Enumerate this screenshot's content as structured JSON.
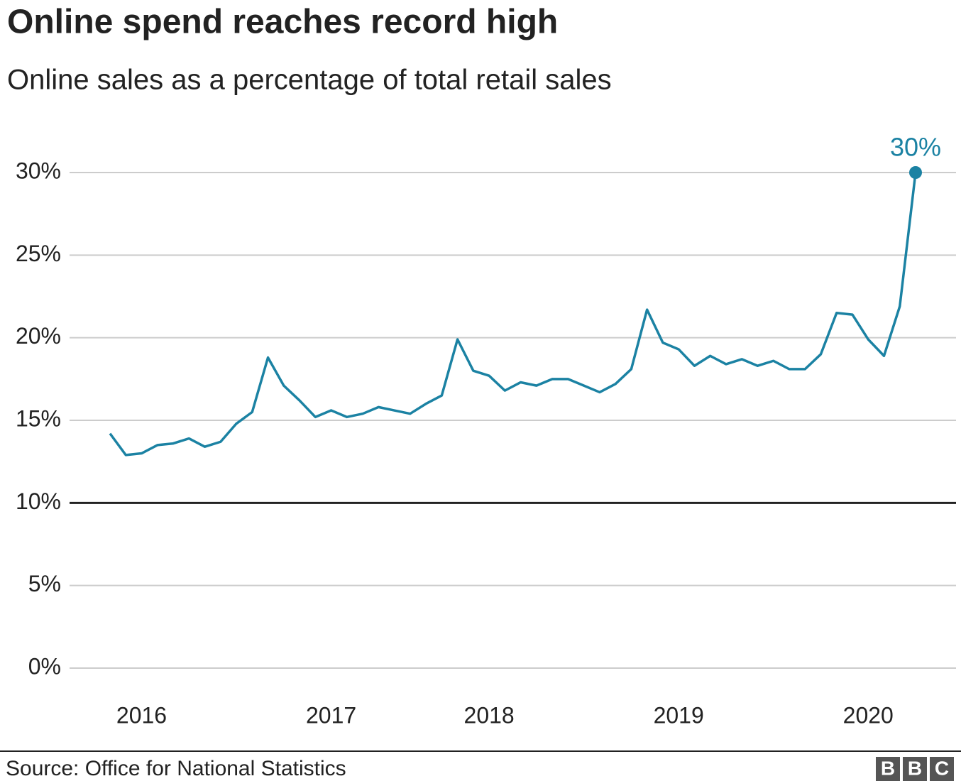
{
  "chart_data": {
    "type": "line",
    "title": "Online spend reaches record high",
    "subtitle": "Online sales as a percentage of total retail sales",
    "source": "Source: Office for National Statistics",
    "logo": [
      "B",
      "B",
      "C"
    ],
    "categories": [
      null,
      null,
      "2016",
      null,
      null,
      null,
      null,
      null,
      null,
      null,
      null,
      null,
      null,
      null,
      "2017",
      null,
      null,
      null,
      null,
      null,
      null,
      null,
      null,
      null,
      "2018",
      null,
      null,
      null,
      null,
      null,
      null,
      null,
      null,
      null,
      null,
      null,
      "2019",
      null,
      null,
      null,
      null,
      null,
      null,
      null,
      null,
      null,
      null,
      null,
      "2020",
      null,
      null,
      null
    ],
    "series": [
      {
        "name": "Online sales",
        "color": "#1b82a3",
        "values": [
          14.2,
          12.9,
          13.0,
          13.5,
          13.6,
          13.9,
          13.4,
          13.7,
          14.8,
          15.5,
          18.8,
          17.1,
          16.2,
          15.2,
          15.6,
          15.2,
          15.4,
          15.8,
          15.6,
          15.4,
          16.0,
          16.5,
          19.9,
          18.0,
          17.7,
          16.8,
          17.3,
          17.1,
          17.5,
          17.5,
          17.1,
          16.7,
          17.2,
          18.1,
          21.7,
          19.7,
          19.3,
          18.3,
          18.9,
          18.4,
          18.7,
          18.3,
          18.6,
          18.1,
          18.1,
          19.0,
          21.5,
          21.4,
          19.9,
          18.9,
          21.9,
          30.0
        ],
        "value_labels": [
          null,
          null,
          null,
          null,
          null,
          null,
          null,
          null,
          null,
          null,
          null,
          null,
          null,
          null,
          null,
          null,
          null,
          null,
          null,
          null,
          null,
          null,
          null,
          null,
          null,
          null,
          null,
          null,
          null,
          null,
          null,
          null,
          null,
          null,
          null,
          null,
          null,
          null,
          null,
          null,
          null,
          null,
          null,
          null,
          null,
          null,
          null,
          null,
          null,
          null,
          null,
          "30%"
        ]
      }
    ],
    "ylim": [
      0,
      30
    ],
    "yticks": [
      {
        "value": 0,
        "label": "0%"
      },
      {
        "value": 5,
        "label": "5%"
      },
      {
        "value": 10,
        "label": "10%"
      },
      {
        "value": 15,
        "label": "15%"
      },
      {
        "value": 20,
        "label": "20%"
      },
      {
        "value": 25,
        "label": "25%"
      },
      {
        "value": 30,
        "label": "30%"
      }
    ],
    "baseline": 10,
    "grid": true
  }
}
